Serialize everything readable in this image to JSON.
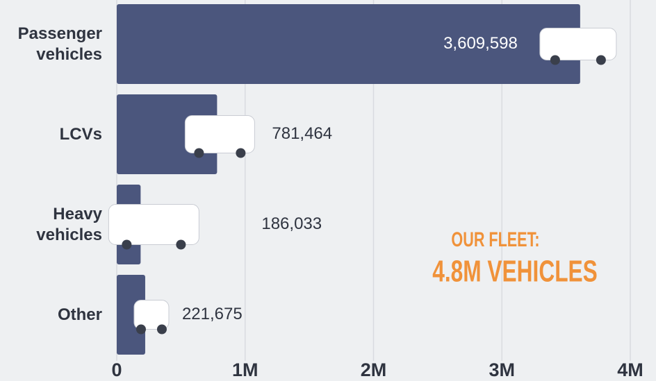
{
  "chart_data": {
    "type": "barh",
    "categories": [
      "Passenger vehicles",
      "LCVs",
      "Heavy vehicles",
      "Other"
    ],
    "values": [
      3609598,
      781464,
      186033,
      221675
    ],
    "value_labels": [
      "3,609,598",
      "781,464",
      "186,033",
      "221,675"
    ],
    "color": "#4b567d",
    "xlim": [
      0,
      4000000
    ],
    "xticks": [
      0,
      {
        "value": 1000000,
        "label": "1M"
      },
      {
        "value": 2000000,
        "label": "2M"
      },
      {
        "value": 3000000,
        "label": "3M"
      },
      {
        "value": 4000000,
        "label": "4M"
      }
    ],
    "grid": true,
    "annotations": [
      "OUR FLEET:",
      "4.8M VEHICLES"
    ],
    "annotation_color": "#f0923a"
  }
}
